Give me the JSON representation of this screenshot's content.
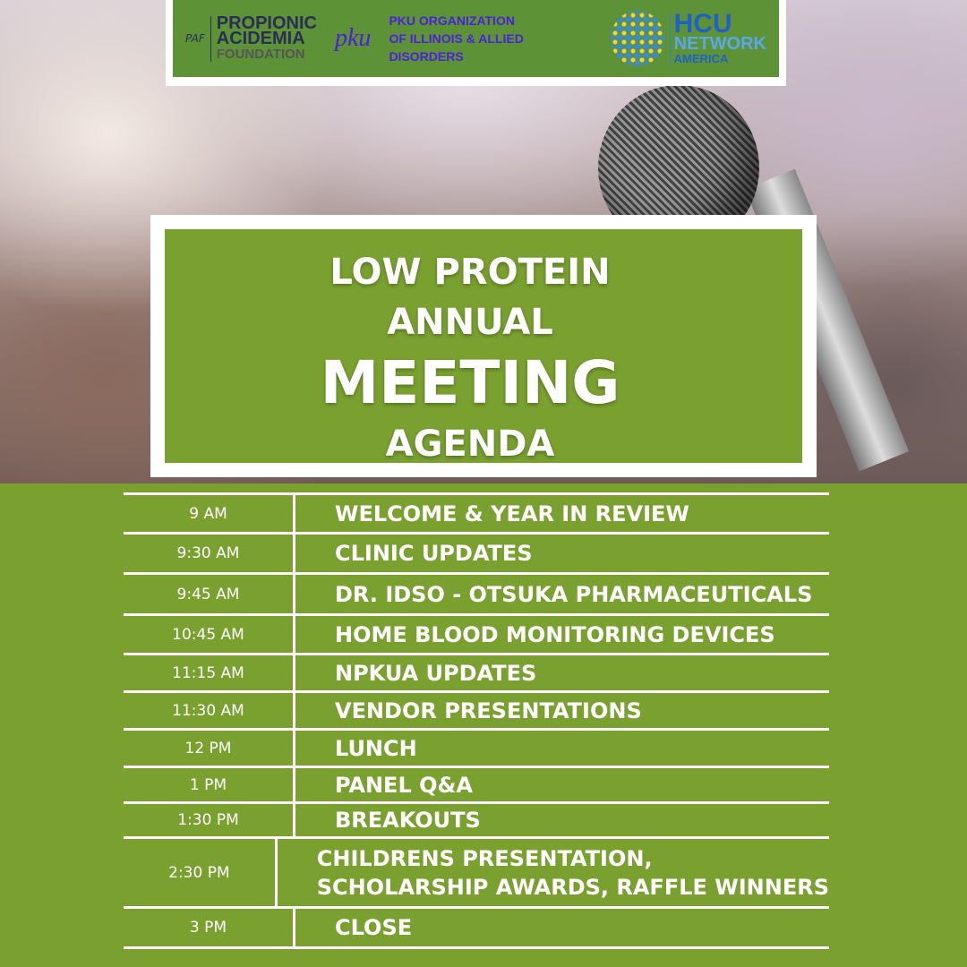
{
  "logos": {
    "propionic": {
      "lines": [
        "PROPIONIC",
        "ACIDEMIA",
        "FOUNDATION"
      ],
      "mark": "PAF"
    },
    "pku": {
      "mark": "pku",
      "lines": [
        "PKU ORGANIZATION",
        "OF ILLINOIS & ALLIED",
        "DISORDERS"
      ]
    },
    "hcu": {
      "lines": [
        "HCU",
        "NETWORK",
        "AMERICA"
      ]
    }
  },
  "title": {
    "line1": "LOW PROTEIN",
    "line2": "ANNUAL",
    "line3": "MEETING",
    "line4": "AGENDA"
  },
  "colors": {
    "green": "#7aa130",
    "logo_green": "#5e9236",
    "white": "#ffffff"
  },
  "agenda": [
    {
      "time": "9 AM",
      "event": "WELCOME & YEAR IN REVIEW"
    },
    {
      "time": "9:30 AM",
      "event": "CLINIC UPDATES"
    },
    {
      "time": "9:45 AM",
      "event": "DR. IDSO - OTSUKA PHARMACEUTICALS"
    },
    {
      "time": "10:45 AM",
      "event": "HOME BLOOD MONITORING DEVICES"
    },
    {
      "time": "11:15 AM",
      "event": "NPKUA UPDATES"
    },
    {
      "time": "11:30 AM",
      "event": "VENDOR PRESENTATIONS"
    },
    {
      "time": "12 PM",
      "event": "LUNCH"
    },
    {
      "time": "1 PM",
      "event": "PANEL Q&A"
    },
    {
      "time": "1:30 PM",
      "event": "BREAKOUTS"
    },
    {
      "time": "2:30 PM",
      "event": "CHILDRENS PRESENTATION,",
      "event2": "SCHOLARSHIP AWARDS, RAFFLE WINNERS"
    },
    {
      "time": "3 PM",
      "event": "CLOSE"
    }
  ]
}
